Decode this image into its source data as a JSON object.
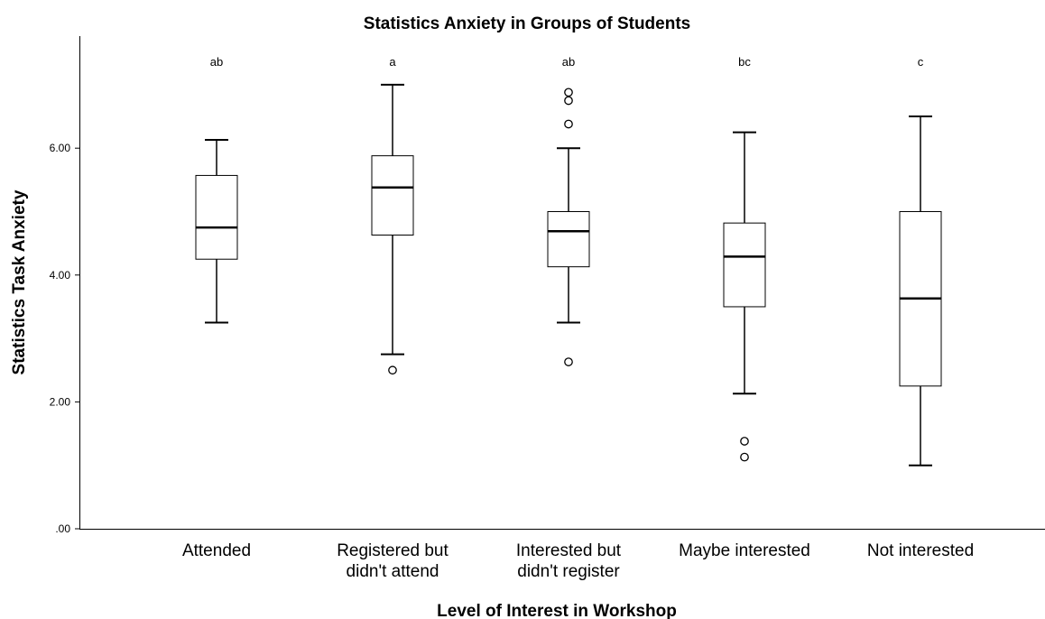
{
  "chart_data": {
    "type": "boxplot",
    "title": "Statistics Anxiety in Groups of Students",
    "xlabel": "Level of Interest in Workshop",
    "ylabel": "Statistics Task Anxiety",
    "ylim": [
      0,
      7.75
    ],
    "yticks": [
      ".00",
      "2.00",
      "4.00",
      "6.00"
    ],
    "ytick_values": [
      0,
      2,
      4,
      6
    ],
    "grid": false,
    "categories": [
      [
        "Attended"
      ],
      [
        "Registered but",
        "didn't attend"
      ],
      [
        "Interested but",
        "didn't register"
      ],
      [
        "Maybe interested"
      ],
      [
        "Not interested"
      ]
    ],
    "boxes": [
      {
        "whisker_low": 3.25,
        "q1": 4.25,
        "median": 4.75,
        "q3": 5.57,
        "whisker_high": 6.13,
        "outliers": [],
        "group_label": "ab"
      },
      {
        "whisker_low": 2.75,
        "q1": 4.63,
        "median": 5.38,
        "q3": 5.88,
        "whisker_high": 7.0,
        "outliers": [
          2.5
        ],
        "group_label": "a"
      },
      {
        "whisker_low": 3.25,
        "q1": 4.13,
        "median": 4.69,
        "q3": 5.0,
        "whisker_high": 6.0,
        "outliers": [
          6.88,
          6.75,
          6.38,
          2.63
        ],
        "group_label": "ab"
      },
      {
        "whisker_low": 2.13,
        "q1": 3.5,
        "median": 4.29,
        "q3": 4.82,
        "whisker_high": 6.25,
        "outliers": [
          1.38,
          1.13
        ],
        "group_label": "bc"
      },
      {
        "whisker_low": 1.0,
        "q1": 2.25,
        "median": 3.63,
        "q3": 5.0,
        "whisker_high": 6.5,
        "outliers": [],
        "group_label": "c"
      }
    ],
    "colors": {
      "box_fill": "#ffffff",
      "stroke": "#000000",
      "axis": "#000000"
    }
  }
}
